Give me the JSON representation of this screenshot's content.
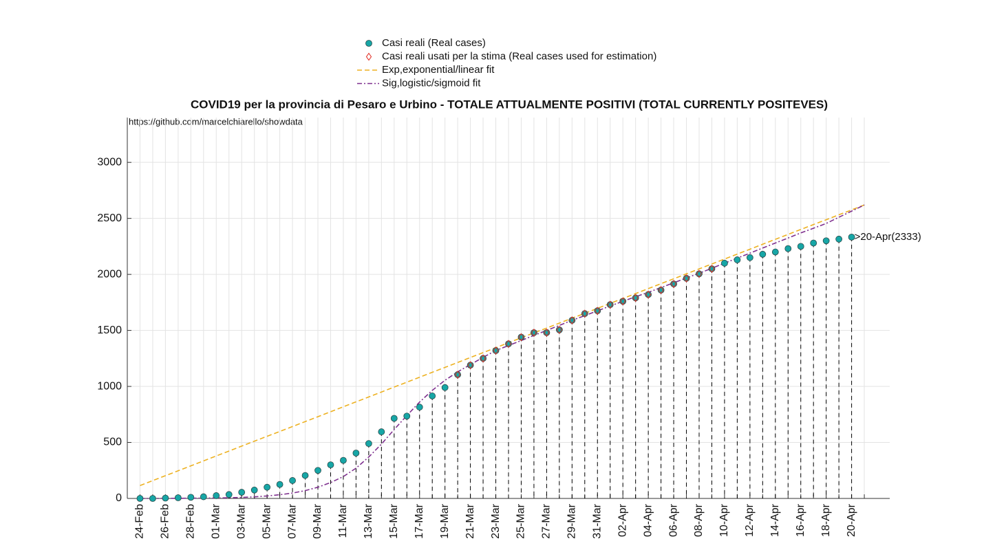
{
  "chart_data": {
    "type": "line",
    "title": "COVID19 per la provincia di Pesaro e Urbino - TOTALE ATTUALMENTE POSITIVI (TOTAL CURRENTLY POSITEVES)",
    "source": "https://github.com/marcelchiarello/showdata",
    "annotation": ">20-Apr(2333)",
    "categories": [
      "24-Feb",
      null,
      "26-Feb",
      null,
      "28-Feb",
      null,
      "01-Mar",
      null,
      "03-Mar",
      null,
      "05-Mar",
      null,
      "07-Mar",
      null,
      "09-Mar",
      null,
      "11-Mar",
      null,
      "13-Mar",
      null,
      "15-Mar",
      null,
      "17-Mar",
      null,
      "19-Mar",
      null,
      "21-Mar",
      null,
      "23-Mar",
      null,
      "25-Mar",
      null,
      "27-Mar",
      null,
      "29-Mar",
      null,
      "31-Mar",
      null,
      "02-Apr",
      null,
      "04-Apr",
      null,
      "06-Apr",
      null,
      "08-Apr",
      null,
      "10-Apr",
      null,
      "12-Apr",
      null,
      "14-Apr",
      null,
      "16-Apr",
      null,
      "18-Apr",
      null,
      "20-Apr",
      null
    ],
    "series": [
      {
        "name": "Casi reali (Real cases)",
        "color": "#17a6a6",
        "marker": "circle",
        "stems": true,
        "values": [
          0,
          0,
          3,
          6,
          10,
          15,
          25,
          35,
          55,
          75,
          100,
          125,
          160,
          205,
          250,
          300,
          340,
          405,
          490,
          595,
          715,
          735,
          815,
          915,
          990,
          1105,
          1190,
          1250,
          1320,
          1380,
          1440,
          1480,
          1480,
          1505,
          1590,
          1650,
          1675,
          1730,
          1760,
          1790,
          1820,
          1860,
          1915,
          1965,
          2005,
          2050,
          2100,
          2130,
          2150,
          2180,
          2200,
          2230,
          2250,
          2280,
          2300,
          2315,
          2333,
          null
        ]
      },
      {
        "name": "Casi reali usati per la stima (Real cases used for estimation)",
        "color": "#e0251b",
        "marker": "diamond",
        "values": [
          null,
          null,
          null,
          null,
          null,
          null,
          null,
          null,
          null,
          null,
          null,
          null,
          null,
          null,
          null,
          null,
          null,
          null,
          null,
          null,
          null,
          null,
          null,
          null,
          null,
          1105,
          1190,
          1250,
          1320,
          1380,
          1440,
          1480,
          1480,
          1505,
          1590,
          1650,
          1675,
          1730,
          1760,
          1790,
          1820,
          1860,
          1915,
          1965,
          2005,
          2050,
          null,
          null,
          null,
          null,
          null,
          null,
          null,
          null,
          null,
          null,
          null,
          null
        ]
      },
      {
        "name": "Exp,exponential/linear fit",
        "color": "#edb120",
        "line_style": "dashed",
        "values": [
          115,
          159,
          203,
          247,
          291,
          335,
          379,
          423,
          467,
          511,
          555,
          598,
          642,
          686,
          730,
          774,
          818,
          862,
          906,
          950,
          994,
          1038,
          1082,
          1126,
          1170,
          1214,
          1258,
          1302,
          1346,
          1390,
          1434,
          1478,
          1521,
          1565,
          1609,
          1653,
          1697,
          1741,
          1785,
          1829,
          1873,
          1917,
          1961,
          2005,
          2049,
          2093,
          2137,
          2181,
          2225,
          2269,
          2313,
          2357,
          2401,
          2445,
          2488,
          2532,
          2576,
          2620
        ]
      },
      {
        "name": "Sig,logistic/sigmoid fit",
        "color": "#7e2f8e",
        "line_style": "dashdot",
        "values": [
          0,
          0,
          1,
          1,
          2,
          3,
          4,
          6,
          9,
          14,
          22,
          33,
          48,
          70,
          100,
          142,
          195,
          270,
          370,
          485,
          615,
          740,
          860,
          965,
          1055,
          1130,
          1195,
          1260,
          1320,
          1365,
          1410,
          1455,
          1500,
          1545,
          1590,
          1632,
          1675,
          1718,
          1760,
          1800,
          1840,
          1882,
          1925,
          1968,
          2010,
          2055,
          2100,
          2145,
          2190,
          2235,
          2280,
          2325,
          2370,
          2412,
          2455,
          2510,
          2565,
          2620
        ]
      }
    ],
    "ylim": [
      0,
      3400
    ],
    "yticks": [
      0,
      500,
      1000,
      1500,
      2000,
      2500,
      3000
    ],
    "grid": true
  }
}
